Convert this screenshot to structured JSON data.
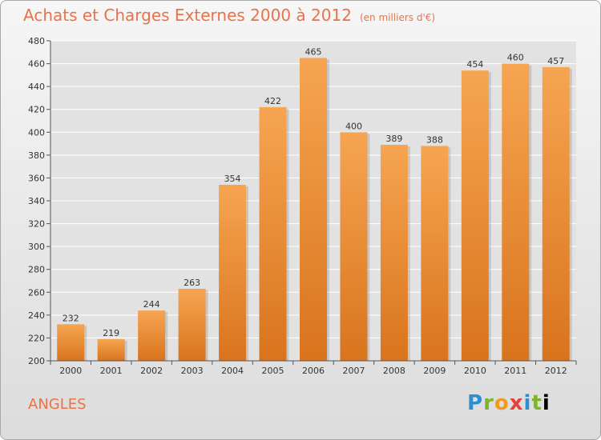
{
  "header": {
    "title": "Achats et Charges Externes 2000 à 2012",
    "unit": "(en milliers d'€)"
  },
  "footer": {
    "commune": "ANGLES",
    "brand": "Proxiti"
  },
  "colors": {
    "title": "#e8734a",
    "bar_top": "#f6a552",
    "bar_bottom": "#d9741d",
    "grid": "#ffffff"
  },
  "chart_data": {
    "type": "bar",
    "title": "Achats et Charges Externes 2000 à 2012",
    "subtitle": "(en milliers d'€)",
    "categories": [
      "2000",
      "2001",
      "2002",
      "2003",
      "2004",
      "2005",
      "2006",
      "2007",
      "2008",
      "2009",
      "2010",
      "2011",
      "2012"
    ],
    "values": [
      232,
      219,
      244,
      263,
      354,
      422,
      465,
      400,
      389,
      388,
      454,
      460,
      457
    ],
    "ylim": [
      200,
      480
    ],
    "yticks": [
      200,
      220,
      240,
      260,
      280,
      300,
      320,
      340,
      360,
      380,
      400,
      420,
      440,
      460,
      480
    ],
    "grid": true,
    "xlabel": "",
    "ylabel": ""
  }
}
